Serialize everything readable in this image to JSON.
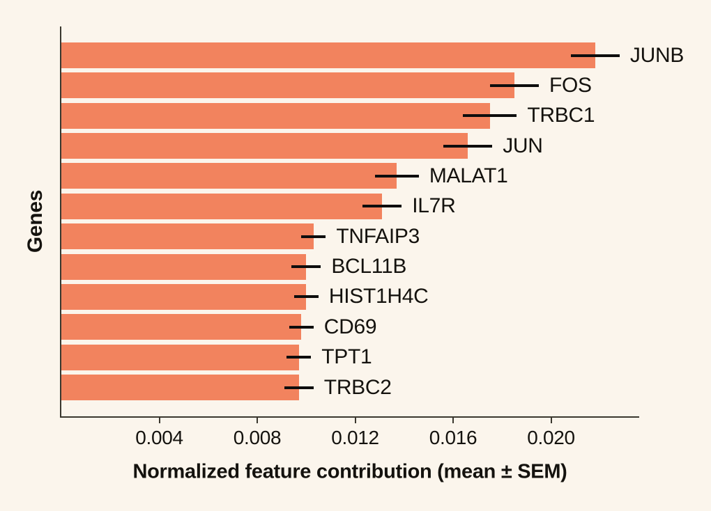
{
  "chart_data": {
    "type": "bar",
    "orientation": "horizontal",
    "title": "",
    "xlabel": "Normalized feature contribution (mean ± SEM)",
    "ylabel": "Genes",
    "categories": [
      "JUNB",
      "FOS",
      "TRBC1",
      "JUN",
      "MALAT1",
      "IL7R",
      "TNFAIP3",
      "BCL11B",
      "HIST1H4C",
      "CD69",
      "TPT1",
      "TRBC2"
    ],
    "values": [
      0.0218,
      0.0185,
      0.0175,
      0.0166,
      0.0137,
      0.0131,
      0.0103,
      0.01,
      0.01,
      0.0098,
      0.0097,
      0.0097
    ],
    "sem": [
      0.001,
      0.001,
      0.0011,
      0.001,
      0.0009,
      0.0008,
      0.0005,
      0.0006,
      0.0005,
      0.0005,
      0.0005,
      0.0006
    ],
    "xlim": [
      0,
      0.0236
    ],
    "xticks": [
      0.004,
      0.008,
      0.012,
      0.016,
      0.02
    ],
    "xtick_labels": [
      "0.004",
      "0.008",
      "0.012",
      "0.016",
      "0.020"
    ],
    "grid": false,
    "legend": "none",
    "bar_label_position": "right-of-error-bar",
    "colors": {
      "bar": "#F2835E",
      "background": "#FBF5EC",
      "axis": "#3A372E",
      "error_bar": "#0D0D0D",
      "text": "#14120E"
    }
  }
}
